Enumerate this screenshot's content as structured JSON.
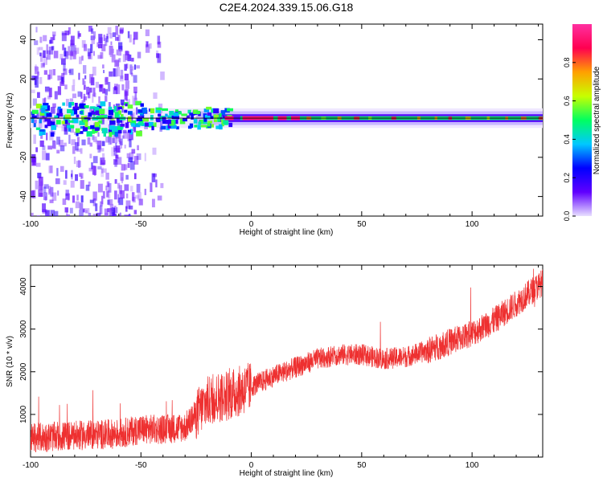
{
  "title": "C2E4.2024.339.15.06.G18",
  "chart_data": [
    {
      "type": "heatmap",
      "title": "C2E4.2024.339.15.06.G18",
      "xlabel": "Height of straight line (km)",
      "ylabel": "Frequency (Hz)",
      "xlim": [
        -100,
        132
      ],
      "ylim": [
        -50,
        48
      ],
      "xticks": [
        -100,
        -50,
        0,
        50,
        100
      ],
      "yticks": [
        -40,
        -20,
        0,
        20,
        40
      ],
      "colorbar": {
        "label": "Normalized spectral amplitude",
        "range": [
          0,
          1
        ],
        "ticks": [
          "0.0",
          "0.2",
          "0.4",
          "0.6",
          "0.8"
        ],
        "colormap": [
          "#e8e0ff",
          "#6000ff",
          "#0000ff",
          "#00c8ff",
          "#00ff60",
          "#c8ff00",
          "#ffa000",
          "#ff0050",
          "#ff30a0"
        ]
      },
      "line_center_hz": 0
    },
    {
      "type": "line",
      "xlabel": "Height of straight line (km)",
      "ylabel": "SNR (10 * v/v)",
      "xlim": [
        -100,
        132
      ],
      "ylim": [
        0,
        4500
      ],
      "xticks": [
        -100,
        -50,
        0,
        50,
        100
      ],
      "yticks": [
        1000,
        2000,
        3000,
        4000
      ],
      "color": "#ee3030",
      "series": [
        {
          "x": [
            -100,
            -80,
            -60,
            -50,
            -40,
            -30,
            -25,
            -20,
            -15,
            -10,
            -5,
            0,
            10,
            20,
            30,
            40,
            50,
            60,
            70,
            80,
            90,
            100,
            110,
            120,
            132
          ],
          "y": [
            450,
            500,
            550,
            650,
            650,
            700,
            1000,
            1300,
            1400,
            1450,
            1550,
            1650,
            1900,
            2100,
            2300,
            2400,
            2400,
            2300,
            2350,
            2500,
            2700,
            2900,
            3200,
            3600,
            4100
          ]
        }
      ]
    }
  ]
}
